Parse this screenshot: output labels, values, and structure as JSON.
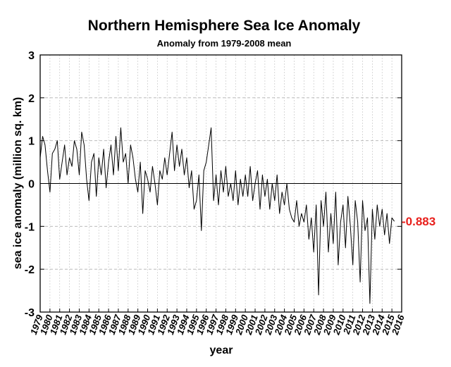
{
  "chart_data": {
    "type": "line",
    "title": "Northern Hemisphere Sea Ice Anomaly",
    "subtitle": "Anomaly from 1979-2008 mean",
    "xlabel": "year",
    "ylabel": "sea ice anomaly (million sq. km)",
    "xlim": [
      1979,
      2016
    ],
    "ylim": [
      -3,
      3
    ],
    "x_ticks": [
      "1979",
      "1980",
      "1981",
      "1982",
      "1983",
      "1984",
      "1985",
      "1986",
      "1987",
      "1988",
      "1989",
      "1990",
      "1991",
      "1992",
      "1993",
      "1994",
      "1995",
      "1996",
      "1997",
      "1998",
      "1999",
      "2000",
      "2001",
      "2002",
      "2003",
      "2004",
      "2005",
      "2006",
      "2007",
      "2008",
      "2009",
      "2010",
      "2011",
      "2012",
      "2013",
      "2014",
      "2015",
      "2016"
    ],
    "y_ticks": [
      "-3",
      "-2",
      "-1",
      "0",
      "1",
      "2",
      "3"
    ],
    "grid": true,
    "zero_line": true,
    "last_value_label": "-0.883",
    "last_value_color": "#e8201c",
    "line_color": "#000000",
    "series": [
      {
        "x": [
          1979.0,
          1979.25,
          1979.5,
          1979.75,
          1980.0,
          1980.25,
          1980.5,
          1980.75,
          1981.0,
          1981.25,
          1981.5,
          1981.75,
          1982.0,
          1982.25,
          1982.5,
          1982.75,
          1983.0,
          1983.25,
          1983.5,
          1983.75,
          1984.0,
          1984.25,
          1984.5,
          1984.75,
          1985.0,
          1985.25,
          1985.5,
          1985.75,
          1986.0,
          1986.25,
          1986.5,
          1986.75,
          1987.0,
          1987.25,
          1987.5,
          1987.75,
          1988.0,
          1988.25,
          1988.5,
          1988.75,
          1989.0,
          1989.25,
          1989.5,
          1989.75,
          1990.0,
          1990.25,
          1990.5,
          1990.75,
          1991.0,
          1991.25,
          1991.5,
          1991.75,
          1992.0,
          1992.25,
          1992.5,
          1992.75,
          1993.0,
          1993.25,
          1993.5,
          1993.75,
          1994.0,
          1994.25,
          1994.5,
          1994.75,
          1995.0,
          1995.25,
          1995.5,
          1995.75,
          1996.0,
          1996.25,
          1996.5,
          1996.75,
          1997.0,
          1997.25,
          1997.5,
          1997.75,
          1998.0,
          1998.25,
          1998.5,
          1998.75,
          1999.0,
          1999.25,
          1999.5,
          1999.75,
          2000.0,
          2000.25,
          2000.5,
          2000.75,
          2001.0,
          2001.25,
          2001.5,
          2001.75,
          2002.0,
          2002.25,
          2002.5,
          2002.75,
          2003.0,
          2003.25,
          2003.5,
          2003.75,
          2004.0,
          2004.25,
          2004.5,
          2004.75,
          2005.0,
          2005.25,
          2005.5,
          2005.75,
          2006.0,
          2006.25,
          2006.5,
          2006.75,
          2007.0,
          2007.25,
          2007.5,
          2007.75,
          2008.0,
          2008.25,
          2008.5,
          2008.75,
          2009.0,
          2009.25,
          2009.5,
          2009.75,
          2010.0,
          2010.25,
          2010.5,
          2010.75,
          2011.0,
          2011.25,
          2011.5,
          2011.75,
          2012.0,
          2012.25,
          2012.5,
          2012.75,
          2013.0,
          2013.25,
          2013.5,
          2013.75,
          2014.0,
          2014.25,
          2014.5,
          2014.75,
          2015.0,
          2015.25
        ],
        "y": [
          0.6,
          1.1,
          0.9,
          0.3,
          -0.2,
          0.7,
          0.8,
          1.0,
          0.1,
          0.5,
          0.9,
          0.2,
          0.6,
          0.4,
          1.0,
          0.8,
          0.2,
          1.2,
          0.9,
          0.1,
          -0.4,
          0.5,
          0.7,
          -0.3,
          0.6,
          0.2,
          0.8,
          -0.1,
          0.5,
          0.9,
          0.2,
          1.1,
          0.3,
          1.3,
          0.5,
          0.7,
          0.0,
          0.9,
          0.6,
          0.1,
          -0.2,
          0.5,
          -0.7,
          0.3,
          0.1,
          -0.2,
          0.4,
          0.0,
          -0.5,
          0.3,
          0.1,
          0.6,
          0.2,
          0.7,
          1.2,
          0.3,
          0.9,
          0.4,
          0.8,
          0.2,
          0.6,
          -0.1,
          0.3,
          -0.6,
          -0.4,
          0.2,
          -1.1,
          0.3,
          0.5,
          0.9,
          1.3,
          -0.4,
          0.2,
          -0.5,
          0.3,
          -0.2,
          0.4,
          -0.3,
          0.0,
          -0.4,
          0.3,
          -0.5,
          0.1,
          -0.3,
          0.2,
          -0.3,
          0.4,
          -0.4,
          0.0,
          0.3,
          -0.6,
          0.2,
          -0.3,
          0.1,
          -0.6,
          0.0,
          -0.4,
          0.2,
          -0.7,
          -0.2,
          -0.5,
          0.0,
          -0.6,
          -0.8,
          -0.9,
          -0.4,
          -1.0,
          -0.7,
          -0.9,
          -0.5,
          -1.3,
          -0.8,
          -1.6,
          -0.5,
          -2.6,
          -0.4,
          -1.0,
          -0.2,
          -1.6,
          -0.7,
          -1.4,
          -0.2,
          -1.9,
          -0.9,
          -0.5,
          -1.5,
          -0.3,
          -1.0,
          -1.9,
          -0.4,
          -0.9,
          -2.3,
          -0.4,
          -1.1,
          -0.8,
          -2.8,
          -0.6,
          -1.3,
          -0.5,
          -1.0,
          -0.6,
          -1.2,
          -0.7,
          -1.4,
          -0.8,
          -0.883
        ]
      }
    ]
  }
}
